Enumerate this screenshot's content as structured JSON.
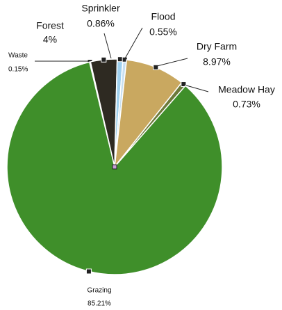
{
  "chart_data": {
    "type": "pie",
    "categories": [
      "Waste",
      "Forest",
      "Sprinkler",
      "Flood",
      "Dry Farm",
      "Meadow Hay",
      "Grazing"
    ],
    "values": [
      0.15,
      4,
      0.86,
      0.55,
      8.97,
      0.73,
      85.21
    ],
    "value_labels": [
      "0.15%",
      "4%",
      "0.86%",
      "0.55%",
      "8.97%",
      "0.73%",
      "85.21%"
    ],
    "colors": [
      "#3a3020",
      "#2e2a22",
      "#9fd0ee",
      "#c8dff0",
      "#c9a860",
      "#6d7a3a",
      "#3f8f2a"
    ]
  }
}
